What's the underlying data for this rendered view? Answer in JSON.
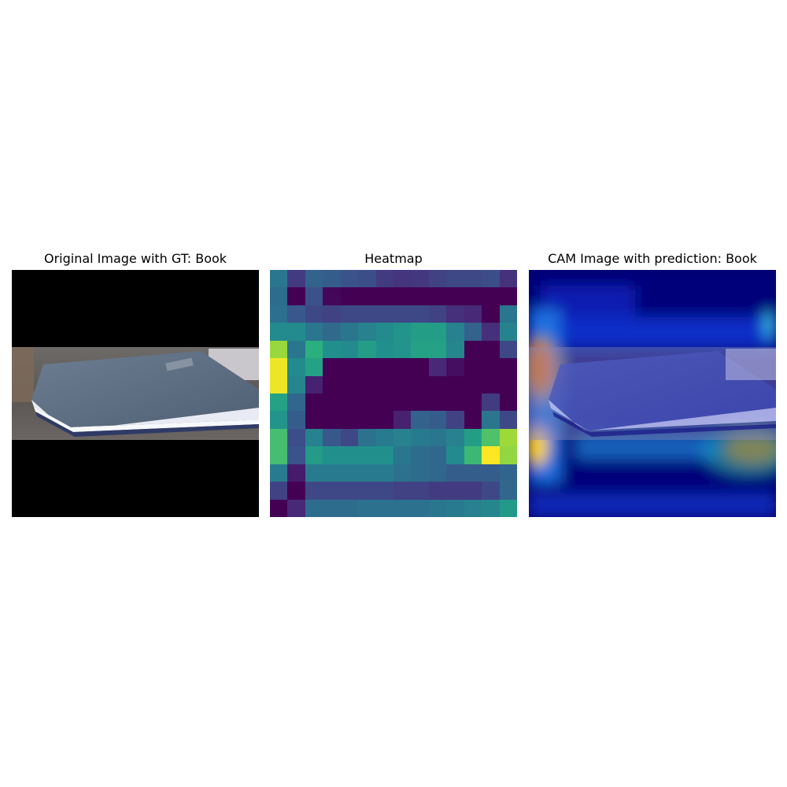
{
  "titles": {
    "original": "Original Image with GT: Book",
    "heatmap": "Heatmap",
    "cam": "CAM Image with prediction: Book"
  },
  "chart_data": {
    "type": "heatmap",
    "colormap": "viridis",
    "rows": 14,
    "cols": 14,
    "values": [
      [
        0.4,
        0.18,
        0.32,
        0.3,
        0.26,
        0.24,
        0.18,
        0.16,
        0.17,
        0.2,
        0.22,
        0.22,
        0.24,
        0.15
      ],
      [
        0.36,
        0.0,
        0.25,
        0.02,
        0.0,
        0.0,
        0.0,
        0.0,
        0.0,
        0.0,
        0.0,
        0.0,
        0.0,
        0.0
      ],
      [
        0.37,
        0.28,
        0.22,
        0.2,
        0.22,
        0.22,
        0.22,
        0.22,
        0.22,
        0.2,
        0.14,
        0.12,
        0.0,
        0.4
      ],
      [
        0.48,
        0.48,
        0.4,
        0.35,
        0.4,
        0.44,
        0.48,
        0.52,
        0.56,
        0.56,
        0.44,
        0.32,
        0.14,
        0.45
      ],
      [
        0.85,
        0.4,
        0.64,
        0.5,
        0.48,
        0.56,
        0.5,
        0.52,
        0.58,
        0.58,
        0.46,
        0.0,
        0.0,
        0.22
      ],
      [
        0.98,
        0.48,
        0.58,
        0.0,
        0.0,
        0.0,
        0.0,
        0.0,
        0.0,
        0.12,
        0.04,
        0.0,
        0.0,
        0.0
      ],
      [
        0.98,
        0.46,
        0.1,
        0.0,
        0.0,
        0.0,
        0.0,
        0.0,
        0.0,
        0.0,
        0.0,
        0.0,
        0.0,
        0.0
      ],
      [
        0.58,
        0.34,
        0.0,
        0.0,
        0.0,
        0.0,
        0.0,
        0.0,
        0.0,
        0.0,
        0.0,
        0.0,
        0.18,
        0.0
      ],
      [
        0.52,
        0.3,
        0.0,
        0.0,
        0.0,
        0.0,
        0.0,
        0.1,
        0.32,
        0.3,
        0.2,
        0.0,
        0.4,
        0.22
      ],
      [
        0.7,
        0.24,
        0.44,
        0.28,
        0.22,
        0.38,
        0.42,
        0.44,
        0.42,
        0.4,
        0.44,
        0.56,
        0.72,
        0.86
      ],
      [
        0.7,
        0.26,
        0.55,
        0.5,
        0.5,
        0.5,
        0.5,
        0.4,
        0.36,
        0.34,
        0.48,
        0.68,
        1.0,
        0.84
      ],
      [
        0.42,
        0.08,
        0.42,
        0.42,
        0.42,
        0.42,
        0.42,
        0.38,
        0.36,
        0.34,
        0.3,
        0.3,
        0.3,
        0.33
      ],
      [
        0.2,
        0.0,
        0.22,
        0.22,
        0.22,
        0.22,
        0.22,
        0.2,
        0.2,
        0.18,
        0.18,
        0.18,
        0.22,
        0.34
      ],
      [
        0.0,
        0.12,
        0.36,
        0.36,
        0.36,
        0.38,
        0.38,
        0.38,
        0.38,
        0.4,
        0.42,
        0.44,
        0.46,
        0.54
      ]
    ]
  }
}
